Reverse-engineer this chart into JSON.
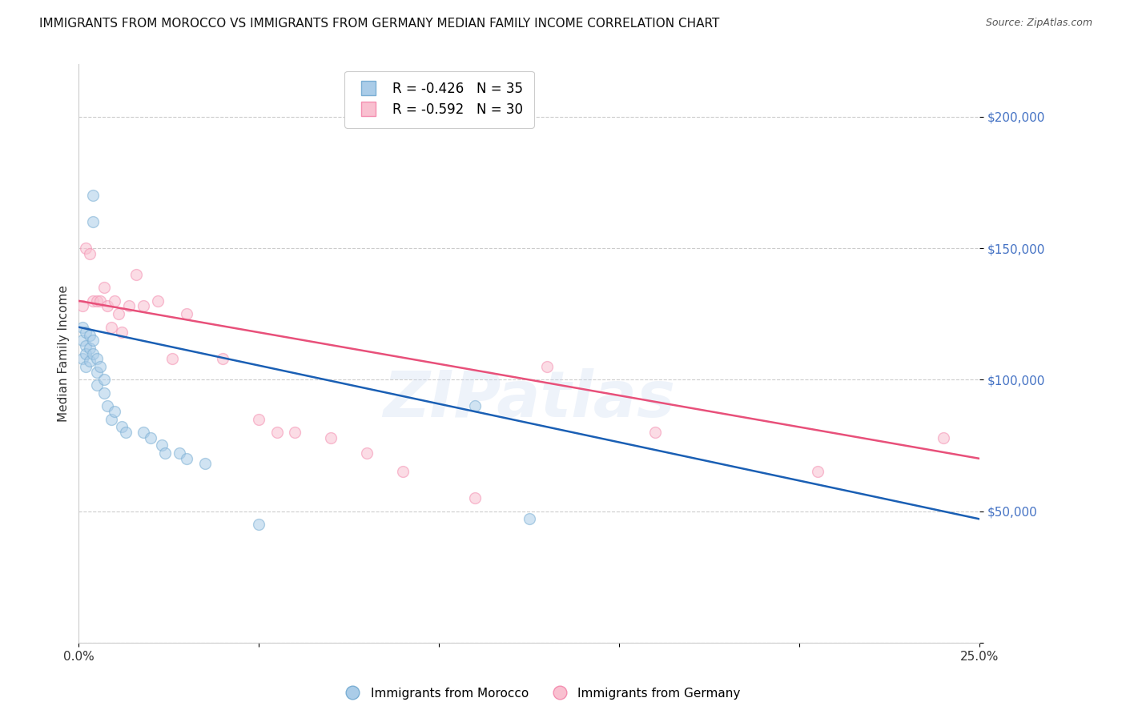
{
  "title": "IMMIGRANTS FROM MOROCCO VS IMMIGRANTS FROM GERMANY MEDIAN FAMILY INCOME CORRELATION CHART",
  "source": "Source: ZipAtlas.com",
  "ylabel": "Median Family Income",
  "xlim": [
    0.0,
    0.25
  ],
  "ylim": [
    0,
    220000
  ],
  "yticks": [
    0,
    50000,
    100000,
    150000,
    200000
  ],
  "ytick_labels": [
    "",
    "$50,000",
    "$100,000",
    "$150,000",
    "$200,000"
  ],
  "background_color": "#ffffff",
  "grid_color": "#cccccc",
  "watermark": "ZIPatlas",
  "morocco_color": "#7bafd4",
  "morocco_fill": "#aacce8",
  "germany_color": "#f48fb1",
  "germany_fill": "#f9c0d0",
  "blue_line_color": "#1a5fb4",
  "pink_line_color": "#e8507a",
  "morocco_x": [
    0.001,
    0.001,
    0.001,
    0.002,
    0.002,
    0.002,
    0.002,
    0.003,
    0.003,
    0.003,
    0.004,
    0.004,
    0.004,
    0.004,
    0.005,
    0.005,
    0.005,
    0.006,
    0.007,
    0.007,
    0.008,
    0.009,
    0.01,
    0.012,
    0.013,
    0.018,
    0.02,
    0.023,
    0.024,
    0.028,
    0.03,
    0.035,
    0.05,
    0.11,
    0.125
  ],
  "morocco_y": [
    120000,
    115000,
    108000,
    118000,
    113000,
    110000,
    105000,
    117000,
    112000,
    107000,
    170000,
    160000,
    115000,
    110000,
    108000,
    103000,
    98000,
    105000,
    100000,
    95000,
    90000,
    85000,
    88000,
    82000,
    80000,
    80000,
    78000,
    75000,
    72000,
    72000,
    70000,
    68000,
    45000,
    90000,
    47000
  ],
  "germany_x": [
    0.001,
    0.002,
    0.003,
    0.004,
    0.005,
    0.006,
    0.007,
    0.008,
    0.009,
    0.01,
    0.011,
    0.012,
    0.014,
    0.016,
    0.018,
    0.022,
    0.026,
    0.03,
    0.04,
    0.05,
    0.055,
    0.06,
    0.07,
    0.08,
    0.09,
    0.11,
    0.13,
    0.16,
    0.205,
    0.24
  ],
  "germany_y": [
    128000,
    150000,
    148000,
    130000,
    130000,
    130000,
    135000,
    128000,
    120000,
    130000,
    125000,
    118000,
    128000,
    140000,
    128000,
    130000,
    108000,
    125000,
    108000,
    85000,
    80000,
    80000,
    78000,
    72000,
    65000,
    55000,
    105000,
    80000,
    65000,
    78000
  ],
  "title_fontsize": 11,
  "axis_label_fontsize": 11,
  "tick_fontsize": 11,
  "legend_fontsize": 12,
  "marker_size": 100,
  "marker_alpha": 0.55,
  "line_width": 1.8
}
